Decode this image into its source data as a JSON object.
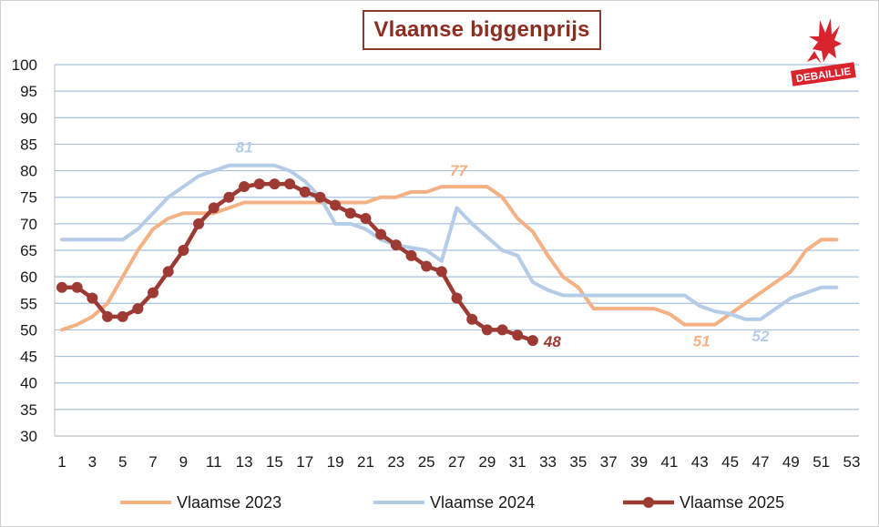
{
  "chart_data": {
    "type": "line",
    "title": "Vlaamse biggenprijs",
    "xlabel": "",
    "ylabel": "",
    "xlim": [
      1,
      53
    ],
    "ylim": [
      30,
      100
    ],
    "x_tick_labels": [
      "1",
      "3",
      "5",
      "7",
      "9",
      "11",
      "13",
      "15",
      "17",
      "19",
      "21",
      "23",
      "25",
      "27",
      "29",
      "31",
      "33",
      "35",
      "37",
      "39",
      "41",
      "43",
      "45",
      "47",
      "49",
      "51",
      "53"
    ],
    "y_tick_labels": [
      "30",
      "35",
      "40",
      "45",
      "50",
      "55",
      "60",
      "65",
      "70",
      "75",
      "80",
      "85",
      "90",
      "95",
      "100"
    ],
    "grid": "horizontal",
    "legend_position": "bottom",
    "series": [
      {
        "name": "Vlaamse 2023",
        "color": "#f4b183",
        "marker": false,
        "x": [
          1,
          2,
          3,
          4,
          5,
          6,
          7,
          8,
          9,
          10,
          11,
          12,
          13,
          14,
          15,
          16,
          17,
          18,
          19,
          20,
          21,
          22,
          23,
          24,
          25,
          26,
          27,
          28,
          29,
          30,
          31,
          32,
          33,
          34,
          35,
          36,
          37,
          38,
          39,
          40,
          41,
          42,
          43,
          44,
          45,
          46,
          47,
          48,
          49,
          50,
          51,
          52
        ],
        "values": [
          50,
          51,
          52.5,
          55,
          60,
          65,
          69,
          71,
          72,
          72,
          72,
          73,
          74,
          74,
          74,
          74,
          74,
          74,
          74,
          74,
          74,
          75,
          75,
          76,
          76,
          77,
          77,
          77,
          77,
          75,
          71,
          68.5,
          64,
          60,
          58,
          54,
          54,
          54,
          54,
          54,
          53,
          51,
          51,
          51,
          53,
          55,
          57,
          59,
          61,
          65,
          67,
          67
        ]
      },
      {
        "name": "Vlaamse 2024",
        "color": "#b4cce8",
        "marker": false,
        "x": [
          1,
          2,
          3,
          4,
          5,
          6,
          7,
          8,
          9,
          10,
          11,
          12,
          13,
          14,
          15,
          16,
          17,
          18,
          19,
          20,
          21,
          22,
          23,
          24,
          25,
          26,
          27,
          28,
          29,
          30,
          31,
          32,
          33,
          34,
          35,
          36,
          37,
          38,
          39,
          40,
          41,
          42,
          43,
          44,
          45,
          46,
          47,
          48,
          49,
          50,
          51,
          52
        ],
        "values": [
          67,
          67,
          67,
          67,
          67,
          69,
          72,
          75,
          77,
          79,
          80,
          81,
          81,
          81,
          81,
          80,
          78,
          75,
          70,
          70,
          69,
          67,
          66,
          65.5,
          65,
          63,
          73,
          70,
          67.5,
          65,
          64,
          59,
          57.5,
          56.5,
          56.5,
          56.5,
          56.5,
          56.5,
          56.5,
          56.5,
          56.5,
          56.5,
          54.5,
          53.5,
          53,
          52,
          52,
          54,
          56,
          57,
          58,
          58
        ]
      },
      {
        "name": "Vlaamse 2025",
        "color": "#9e3a34",
        "marker": true,
        "x": [
          1,
          2,
          3,
          4,
          5,
          6,
          7,
          8,
          9,
          10,
          11,
          12,
          13,
          14,
          15,
          16,
          17,
          18,
          19,
          20,
          21,
          22,
          23,
          24,
          25,
          26,
          27,
          28,
          29,
          30,
          31,
          32
        ],
        "values": [
          58,
          58,
          56,
          52.5,
          52.5,
          54,
          57,
          61,
          65,
          70,
          73,
          75,
          77,
          77.5,
          77.5,
          77.5,
          76,
          75,
          73.5,
          72,
          71,
          68,
          66,
          64,
          62,
          61,
          56,
          52,
          50,
          50,
          49,
          48
        ]
      }
    ],
    "annotations": [
      {
        "text": "81",
        "series": "Vlaamse 2024",
        "x": 13,
        "y": 81
      },
      {
        "text": "77",
        "series": "Vlaamse 2023",
        "x": 27,
        "y": 77
      },
      {
        "text": "51",
        "series": "Vlaamse 2023",
        "x": 43,
        "y": 51
      },
      {
        "text": "52",
        "series": "Vlaamse 2024",
        "x": 47,
        "y": 52
      },
      {
        "text": "48",
        "series": "Vlaamse 2025",
        "x": 32,
        "y": 48
      }
    ]
  },
  "logo": {
    "text": "DEBAILLIE",
    "color": "#d9232d"
  }
}
